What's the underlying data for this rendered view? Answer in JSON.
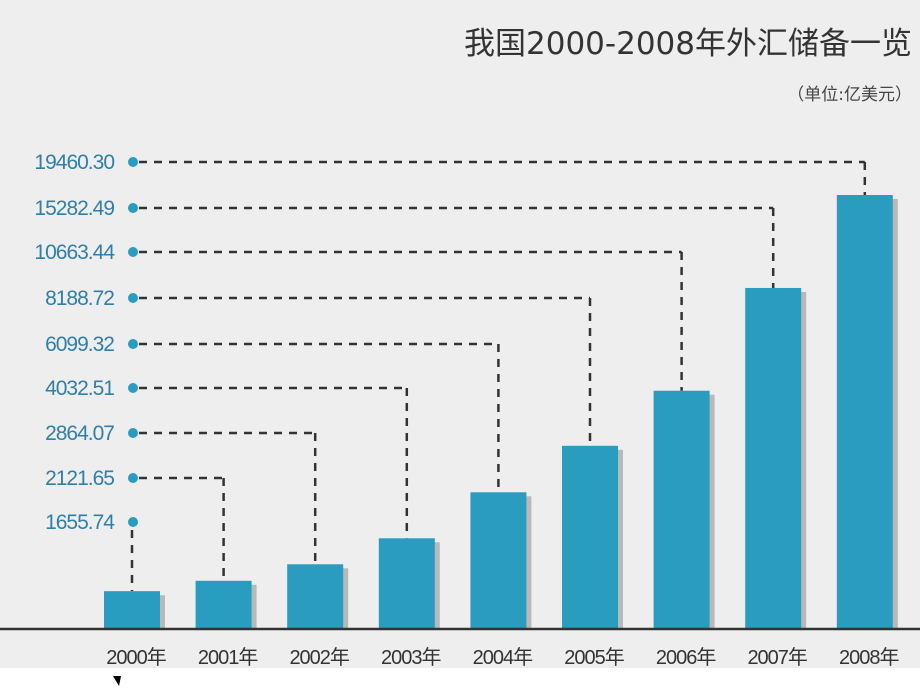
{
  "chart_data": {
    "type": "bar",
    "title": "我国2000-2008年外汇储备一览",
    "subtitle": "（单位:亿美元）",
    "categories": [
      "2000年",
      "2001年",
      "2002年",
      "2003年",
      "2004年",
      "2005年",
      "2006年",
      "2007年",
      "2008年"
    ],
    "values": [
      1655.74,
      2121.65,
      2864.07,
      4032.51,
      6099.32,
      8188.72,
      10663.44,
      15282.49,
      19460.3
    ],
    "value_labels": [
      "1655.74",
      "2121.65",
      "2864.07",
      "4032.51",
      "6099.32",
      "8188.72",
      "10663.44",
      "15282.49",
      "19460.30"
    ],
    "ylim": [
      0,
      19460.3
    ],
    "grid": false,
    "legend": "none",
    "colors": {
      "bar": "#2a9cc0",
      "shadow": "#b9b9b9",
      "label": "#2f7fa8",
      "background": "#efeeee"
    }
  }
}
